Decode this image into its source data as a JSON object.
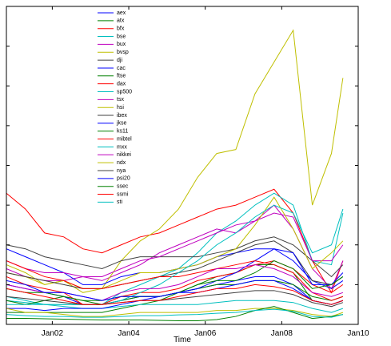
{
  "chart_data": {
    "type": "line",
    "xlabel": "Time",
    "x": [
      2000.8,
      2001.3,
      2001.8,
      2002.3,
      2002.8,
      2003.3,
      2003.8,
      2004.3,
      2004.8,
      2005.3,
      2005.8,
      2006.3,
      2006.8,
      2007.3,
      2007.8,
      2008.3,
      2008.8,
      2009.3,
      2009.6
    ],
    "xlim": [
      2000.8,
      2010
    ],
    "xticks": [
      {
        "value": 2002,
        "label": "Jan02"
      },
      {
        "value": 2004,
        "label": "Jan04"
      },
      {
        "value": 2006,
        "label": "Jan06"
      },
      {
        "value": 2008,
        "label": "Jan08"
      },
      {
        "value": 2010,
        "label": "Jan10"
      }
    ],
    "ylim": [
      0,
      8
    ],
    "yticks": [
      0,
      1,
      2,
      3,
      4,
      5,
      6,
      7,
      8
    ],
    "legend": "top-left",
    "series": [
      {
        "name": "aex",
        "color": "#0000ff",
        "values": [
          1.0,
          0.9,
          0.8,
          0.7,
          0.5,
          0.5,
          0.6,
          0.7,
          0.7,
          0.8,
          0.9,
          1.0,
          1.1,
          1.2,
          1.2,
          1.0,
          0.6,
          0.5,
          0.6
        ]
      },
      {
        "name": "atx",
        "color": "#008000",
        "values": [
          0.3,
          0.3,
          0.3,
          0.3,
          0.3,
          0.3,
          0.4,
          0.5,
          0.6,
          0.8,
          1.0,
          1.2,
          1.3,
          1.5,
          1.5,
          1.3,
          0.6,
          0.5,
          0.6
        ]
      },
      {
        "name": "bfx",
        "color": "#ff0000",
        "values": [
          3.3,
          2.9,
          2.3,
          2.2,
          1.9,
          1.8,
          2.0,
          2.2,
          2.3,
          2.5,
          2.7,
          2.9,
          3.0,
          3.2,
          3.4,
          2.8,
          1.6,
          0.8,
          1.6
        ]
      },
      {
        "name": "bse",
        "color": "#00bfbf",
        "values": [
          0.7,
          0.6,
          0.5,
          0.5,
          0.5,
          0.5,
          0.8,
          1.0,
          1.2,
          1.4,
          1.8,
          2.3,
          2.6,
          3.0,
          3.3,
          3.0,
          1.6,
          1.5,
          2.8
        ]
      },
      {
        "name": "bux",
        "color": "#bf00bf",
        "values": [
          1.4,
          1.2,
          1.1,
          1.1,
          1.2,
          1.1,
          1.3,
          1.5,
          1.8,
          2.0,
          2.2,
          2.4,
          2.3,
          2.6,
          3.0,
          2.4,
          1.4,
          0.9,
          1.6
        ]
      },
      {
        "name": "bvsp",
        "color": "#bfbf00",
        "values": [
          1.3,
          1.2,
          1.0,
          1.1,
          0.8,
          0.9,
          1.6,
          2.1,
          2.4,
          2.9,
          3.7,
          4.3,
          4.4,
          5.8,
          6.6,
          7.4,
          3.0,
          4.3,
          6.2
        ]
      },
      {
        "name": "dji",
        "color": "#404040",
        "values": [
          2.0,
          1.9,
          1.7,
          1.6,
          1.5,
          1.4,
          1.6,
          1.7,
          1.7,
          1.7,
          1.7,
          1.8,
          1.9,
          2.1,
          2.2,
          2.0,
          1.6,
          1.2,
          1.5
        ]
      },
      {
        "name": "cac",
        "color": "#0000ff",
        "values": [
          1.9,
          1.7,
          1.5,
          1.3,
          1.0,
          1.0,
          1.2,
          1.3,
          1.3,
          1.4,
          1.5,
          1.7,
          1.8,
          1.9,
          1.9,
          1.6,
          1.1,
          0.9,
          1.1
        ]
      },
      {
        "name": "ftse",
        "color": "#008000",
        "values": [
          0.9,
          0.8,
          0.8,
          0.7,
          0.6,
          0.6,
          0.7,
          0.7,
          0.7,
          0.8,
          0.9,
          1.0,
          1.0,
          1.1,
          1.1,
          1.0,
          0.7,
          0.6,
          0.7
        ]
      },
      {
        "name": "dax",
        "color": "#ff0000",
        "values": [
          1.2,
          1.0,
          0.9,
          0.8,
          0.5,
          0.5,
          0.7,
          0.8,
          0.8,
          0.9,
          1.1,
          1.2,
          1.3,
          1.5,
          1.6,
          1.4,
          1.0,
          0.8,
          1.0
        ]
      },
      {
        "name": "sp500",
        "color": "#00bfbf",
        "values": [
          0.6,
          0.55,
          0.5,
          0.45,
          0.4,
          0.4,
          0.45,
          0.5,
          0.5,
          0.5,
          0.5,
          0.55,
          0.6,
          0.6,
          0.6,
          0.55,
          0.4,
          0.3,
          0.4
        ]
      },
      {
        "name": "tsx",
        "color": "#bf00bf",
        "values": [
          1.6,
          1.4,
          1.3,
          1.3,
          1.2,
          1.2,
          1.4,
          1.6,
          1.7,
          1.9,
          2.1,
          2.3,
          2.5,
          2.6,
          2.8,
          2.7,
          1.6,
          1.6,
          2.0
        ]
      },
      {
        "name": "hsi",
        "color": "#bfbf00",
        "values": [
          1.5,
          1.3,
          1.0,
          1.1,
          0.9,
          0.9,
          1.1,
          1.3,
          1.3,
          1.4,
          1.5,
          1.7,
          1.9,
          2.5,
          3.2,
          2.4,
          1.4,
          1.8,
          2.1
        ]
      },
      {
        "name": "ibex",
        "color": "#404040",
        "values": [
          1.3,
          1.2,
          1.1,
          1.0,
          0.9,
          0.9,
          1.0,
          1.1,
          1.2,
          1.3,
          1.4,
          1.6,
          1.8,
          2.0,
          2.1,
          1.8,
          1.1,
          1.0,
          1.2
        ]
      },
      {
        "name": "jkse",
        "color": "#0000ff",
        "values": [
          0.4,
          0.4,
          0.35,
          0.4,
          0.4,
          0.4,
          0.5,
          0.6,
          0.7,
          0.8,
          0.9,
          1.1,
          1.3,
          1.6,
          1.9,
          1.8,
          1.0,
          1.0,
          1.3
        ]
      },
      {
        "name": "ks11",
        "color": "#008000",
        "values": [
          0.6,
          0.5,
          0.6,
          0.7,
          0.6,
          0.5,
          0.6,
          0.7,
          0.7,
          0.8,
          1.0,
          1.1,
          1.1,
          1.3,
          1.6,
          1.4,
          0.9,
          1.0,
          1.2
        ]
      },
      {
        "name": "mibtel",
        "color": "#ff0000",
        "values": [
          1.6,
          1.4,
          1.2,
          1.1,
          0.9,
          0.9,
          1.0,
          1.1,
          1.2,
          1.2,
          1.3,
          1.4,
          1.5,
          1.6,
          1.5,
          1.3,
          0.8,
          0.6,
          0.7
        ]
      },
      {
        "name": "mxx",
        "color": "#00bfbf",
        "values": [
          0.5,
          0.5,
          0.5,
          0.5,
          0.5,
          0.5,
          0.6,
          0.8,
          1.0,
          1.3,
          1.6,
          2.0,
          2.3,
          2.7,
          3.0,
          2.8,
          1.8,
          2.0,
          2.9
        ]
      },
      {
        "name": "nikkei",
        "color": "#bf00bf",
        "values": [
          1.0,
          0.9,
          0.8,
          0.8,
          0.7,
          0.6,
          0.8,
          0.9,
          0.9,
          1.0,
          1.2,
          1.4,
          1.4,
          1.5,
          1.4,
          1.2,
          0.8,
          0.7,
          0.8
        ]
      },
      {
        "name": "ndx",
        "color": "#bfbf00",
        "values": [
          0.4,
          0.3,
          0.3,
          0.25,
          0.2,
          0.2,
          0.25,
          0.3,
          0.3,
          0.3,
          0.3,
          0.35,
          0.35,
          0.4,
          0.4,
          0.35,
          0.25,
          0.2,
          0.3
        ]
      },
      {
        "name": "nya",
        "color": "#404040",
        "values": [
          0.7,
          0.65,
          0.6,
          0.55,
          0.5,
          0.5,
          0.55,
          0.6,
          0.6,
          0.65,
          0.7,
          0.75,
          0.8,
          0.85,
          0.85,
          0.75,
          0.55,
          0.45,
          0.55
        ]
      },
      {
        "name": "psi20",
        "color": "#0000ff",
        "values": [
          1.1,
          1.0,
          0.8,
          0.8,
          0.7,
          0.6,
          0.7,
          0.7,
          0.7,
          0.8,
          0.8,
          0.9,
          1.0,
          1.1,
          1.1,
          0.9,
          0.6,
          0.5,
          0.6
        ]
      },
      {
        "name": "ssec",
        "color": "#008000",
        "values": [
          0.15,
          0.15,
          0.14,
          0.13,
          0.12,
          0.11,
          0.11,
          0.11,
          0.1,
          0.09,
          0.09,
          0.12,
          0.2,
          0.35,
          0.45,
          0.3,
          0.15,
          0.2,
          0.25
        ]
      },
      {
        "name": "ssmi",
        "color": "#ff0000",
        "values": [
          0.9,
          0.8,
          0.7,
          0.6,
          0.5,
          0.5,
          0.55,
          0.6,
          0.6,
          0.7,
          0.8,
          0.9,
          0.9,
          1.0,
          0.95,
          0.85,
          0.6,
          0.5,
          0.6
        ]
      },
      {
        "name": "sti",
        "color": "#00bfbf",
        "values": [
          0.25,
          0.22,
          0.2,
          0.2,
          0.18,
          0.18,
          0.2,
          0.22,
          0.22,
          0.24,
          0.25,
          0.28,
          0.3,
          0.35,
          0.38,
          0.33,
          0.2,
          0.18,
          0.25
        ]
      }
    ]
  }
}
